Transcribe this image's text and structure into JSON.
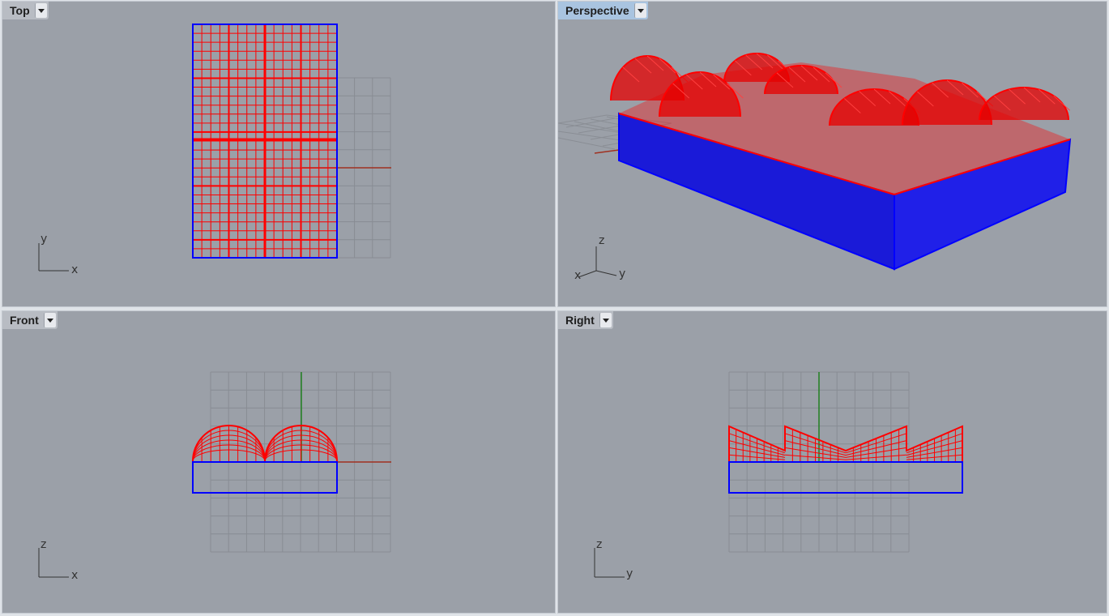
{
  "viewports": {
    "top": {
      "title": "Top",
      "axis_h": "x",
      "axis_v": "y"
    },
    "perspective": {
      "title": "Perspective",
      "axis_x": "x",
      "axis_y": "y",
      "axis_z": "z"
    },
    "front": {
      "title": "Front",
      "axis_h": "x",
      "axis_v": "z"
    },
    "right": {
      "title": "Right",
      "axis_h": "y",
      "axis_v": "z"
    }
  },
  "active_viewport": "Perspective",
  "colors": {
    "viewport_bg": "#9ba0a8",
    "grid": "#888c93",
    "selected_surface": "#ff0000",
    "base_box": "#0000ff",
    "x_axis": "#a03020",
    "y_axis": "#208020"
  }
}
